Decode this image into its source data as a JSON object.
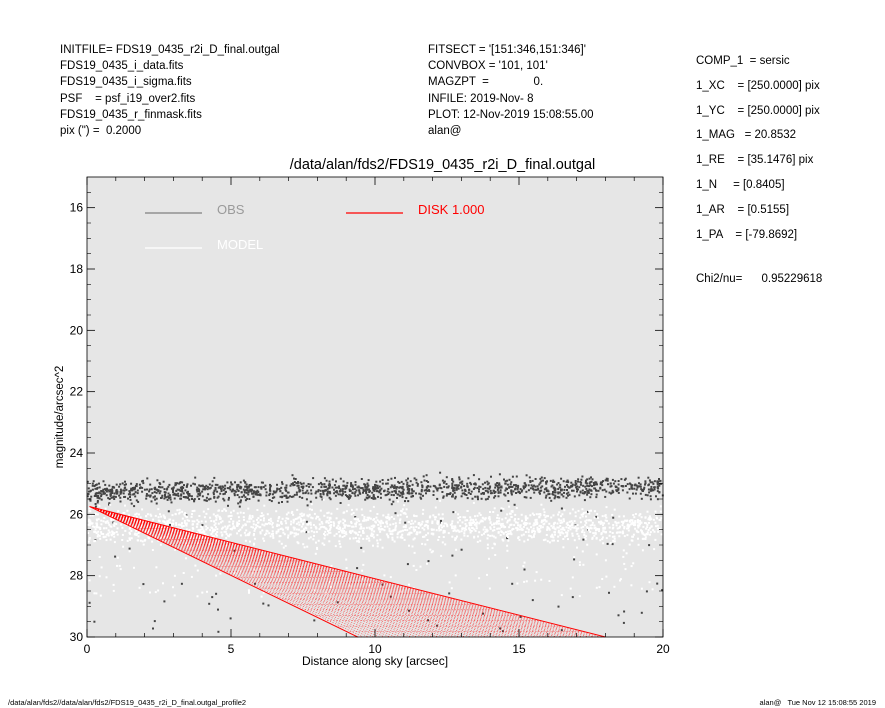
{
  "header": {
    "left": [
      "INITFILE= FDS19_0435_r2i_D_final.outgal",
      "FDS19_0435_i_data.fits",
      "FDS19_0435_i_sigma.fits",
      "PSF    = psf_i19_over2.fits",
      "FDS19_0435_r_finmask.fits",
      "pix (\") =  0.2000"
    ],
    "middle": [
      "FITSECT = '[151:346,151:346]'",
      "CONVBOX = '101, 101'",
      "MAGZPT  =              0.",
      "INFILE: 2019-Nov- 8",
      "PLOT: 12-Nov-2019 15:08:55.00",
      "alan@"
    ],
    "right": [
      "COMP_1  = sersic",
      "1_XC    = [250.0000] pix",
      "1_YC    = [250.0000] pix",
      "1_MAG   = 20.8532",
      "1_RE    = [35.1476] pix",
      "1_N     = [0.8405]",
      "1_AR    = [0.5155]",
      "1_PA    = [-79.8692]"
    ],
    "chi2": "Chi2/nu=      0.95229618"
  },
  "footer": {
    "left": "/data/alan/fds2//data/alan/fds2/FDS19_0435_r2i_D_final.outgal_profile2",
    "right": "alan@   Tue Nov 12 15:08:55 2019"
  },
  "chart_data": {
    "type": "scatter",
    "title": "/data/alan/fds2/FDS19_0435_r2i_D_final.outgal",
    "xlabel": "Distance along sky [arcsec]",
    "ylabel": "magnitude/arcsec^2",
    "xlim": [
      0,
      20
    ],
    "ylim": [
      30,
      15
    ],
    "y_inverted": true,
    "x_ticks": [
      "0",
      "5",
      "10",
      "15",
      "20"
    ],
    "y_ticks": [
      "16",
      "18",
      "20",
      "22",
      "24",
      "26",
      "28",
      "30"
    ],
    "background": "#e6e6e6",
    "legend": [
      {
        "label": "OBS",
        "color": "#808080",
        "text_color": "#9a9a9a"
      },
      {
        "label": "MODEL",
        "color": "#ffffff",
        "text_color": "#ffffff"
      },
      {
        "label": "DISK  1.000",
        "color": "#ff0000",
        "text_color": "#ff0000"
      }
    ],
    "series": [
      {
        "name": "OBS",
        "kind": "points",
        "color": "#444444",
        "mean_mag_at_0": 25.3,
        "mean_mag_at_20": 25.1,
        "scatter_upper": 24.0,
        "outlier_max": 30.0
      },
      {
        "name": "MODEL",
        "kind": "points",
        "color": "#ffffff",
        "mean_mag_at_0": 26.4,
        "mean_mag_at_20": 26.4,
        "scatter_lower": 25.3,
        "scatter_upper": 28.5
      },
      {
        "name": "DISK  1.000",
        "kind": "fan",
        "color": "#ff0000",
        "apex": [
          0.1,
          25.75
        ],
        "upper_edge": [
          [
            0.1,
            25.75
          ],
          [
            18.0,
            30.0
          ]
        ],
        "lower_edge": [
          [
            0.1,
            25.75
          ],
          [
            9.4,
            30.0
          ]
        ]
      }
    ]
  }
}
